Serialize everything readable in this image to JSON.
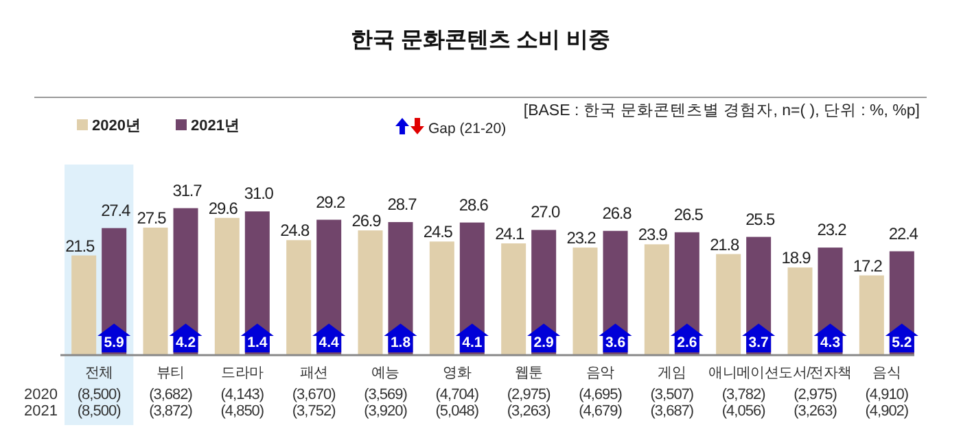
{
  "chart_data": {
    "type": "bar",
    "title": "한국 문화콘텐츠 소비 비중",
    "categories": [
      "전체",
      "뷰티",
      "드라마",
      "패션",
      "예능",
      "영화",
      "웹툰",
      "음악",
      "게임",
      "애니메이션",
      "도서/전자책",
      "음식"
    ],
    "series": [
      {
        "name": "2020년",
        "color": "#e0cfab",
        "values": [
          21.5,
          27.5,
          29.6,
          24.8,
          26.9,
          24.5,
          24.1,
          23.2,
          23.9,
          21.8,
          18.9,
          17.2
        ],
        "value_labels": [
          "21.5",
          "27.5",
          "29.6",
          "24.8",
          "26.9",
          "24.5",
          "24.1",
          "23.2",
          "23.9",
          "21.8",
          "18.9",
          "17.2"
        ]
      },
      {
        "name": "2021년",
        "color": "#71456b",
        "values": [
          27.4,
          31.7,
          31.0,
          29.2,
          28.7,
          28.6,
          27.0,
          26.8,
          26.5,
          25.5,
          23.2,
          22.4
        ],
        "value_labels": [
          "27.4",
          "31.7",
          "31.0",
          "29.2",
          "28.7",
          "28.6",
          "27.0",
          "26.8",
          "26.5",
          "25.5",
          "23.2",
          "22.4"
        ]
      }
    ],
    "legend": "top left",
    "bands": [
      {
        "axis": "x",
        "from": "전체",
        "to": "전체",
        "color": "#dff0fa"
      }
    ],
    "annotations": [
      "[BASE : 한국 문화콘텐츠별 경험자, n=( ), 단위 : %, %p]",
      "Gap (21-20)",
      {
        "text": "5.9",
        "x": "전체"
      },
      {
        "text": "4.2",
        "x": "뷰티"
      },
      {
        "text": "1.4",
        "x": "드라마"
      },
      {
        "text": "4.4",
        "x": "패션"
      },
      {
        "text": "1.8",
        "x": "예능"
      },
      {
        "text": "4.1",
        "x": "영화"
      },
      {
        "text": "2.9",
        "x": "웹툰"
      },
      {
        "text": "3.6",
        "x": "음악"
      },
      {
        "text": "2.6",
        "x": "게임"
      },
      {
        "text": "3.7",
        "x": "애니메이션"
      },
      {
        "text": "4.3",
        "x": "도서/전자책"
      },
      {
        "text": "5.2",
        "x": "음식"
      },
      "2020",
      "(8,500)",
      "(3,682)",
      "(4,143)",
      "(3,670)",
      "(3,569)",
      "(4,704)",
      "(2,975)",
      "(4,695)",
      "(3,507)",
      "(3,782)",
      "(2,975)",
      "(4,910)",
      "2021",
      "(8,500)",
      "(3,872)",
      "(4,850)",
      "(3,752)",
      "(3,920)",
      "(5,048)",
      "(3,263)",
      "(4,679)",
      "(3,687)",
      "(4,056)",
      "(3,263)",
      "(4,902)"
    ]
  }
}
